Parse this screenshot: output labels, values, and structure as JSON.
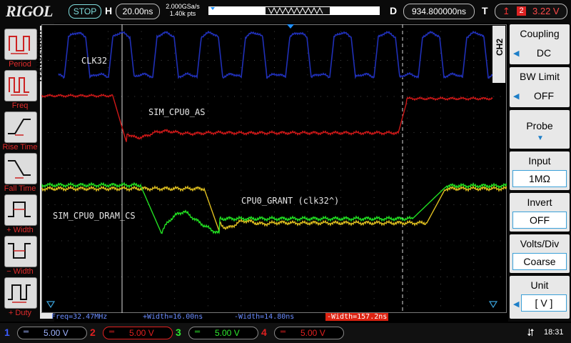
{
  "top": {
    "logo": "RIGOL",
    "run_state": "STOP",
    "h_label": "H",
    "timebase": "20.00ns",
    "sample_rate": "2.000GSa/s",
    "points": "1.40k pts",
    "d_label": "D",
    "delay": "934.800000ns",
    "t_label": "T",
    "trigger_channel": "2",
    "trigger_level": "3.22 V"
  },
  "horizontal_tab": "HORIZONTAL",
  "measure_buttons": [
    {
      "label": "Period"
    },
    {
      "label": "Freq"
    },
    {
      "label": "Rise Time"
    },
    {
      "label": "Fall Time"
    },
    {
      "label": "+ Width"
    },
    {
      "label": "− Width"
    },
    {
      "label": "+ Duty"
    }
  ],
  "trace_labels": {
    "clk32": "CLK32",
    "as": "SIM_CPU0_AS",
    "grant": "CPU0_GRANT (clk32^)",
    "dram": "SIM_CPU0_DRAM_CS"
  },
  "measurements": {
    "freq": "Freq=32.47MHz",
    "pwidth": "+Width=16.00ns",
    "nwidth": "-Width=14.80ns",
    "nwidth_red": "-Width=157.2ns"
  },
  "right": {
    "tab": "CH2",
    "coupling_title": "Coupling",
    "coupling_value": "DC",
    "bw_title": "BW Limit",
    "bw_value": "OFF",
    "probe_title": "Probe",
    "input_title": "Input",
    "input_value": "1MΩ",
    "invert_title": "Invert",
    "invert_value": "OFF",
    "voltsdiv_title": "Volts/Div",
    "voltsdiv_value": "Coarse",
    "unit_title": "Unit",
    "unit_value": "[ V ]"
  },
  "channels": [
    {
      "num": "1",
      "scale": "5.00 V",
      "color": "#3b5cff"
    },
    {
      "num": "2",
      "scale": "5.00 V",
      "color": "#e02020"
    },
    {
      "num": "3",
      "scale": "5.00 V",
      "color": "#2ee82e"
    },
    {
      "num": "4",
      "scale": "5.00 V",
      "color": "#e02020"
    }
  ],
  "clock": "18:31",
  "icons": {
    "usb": "usb-icon",
    "trigger_edge": "rising-edge-icon"
  }
}
